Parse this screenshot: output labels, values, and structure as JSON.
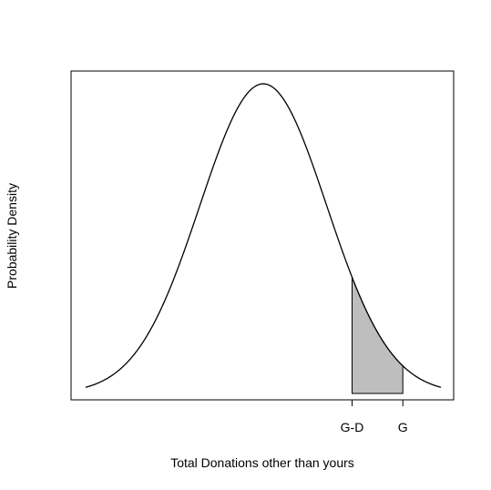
{
  "chart_data": {
    "type": "area",
    "title": "",
    "xlabel": "Total Donations other than yours",
    "ylabel": "Probability Density",
    "curve": "normal-density",
    "x_range": [
      -2.8,
      2.8
    ],
    "mean": 0,
    "sd": 1,
    "shaded_region": {
      "from": 1.4,
      "to": 2.2,
      "color": "#bebebe"
    },
    "x_ticks": [
      {
        "value": 1.4,
        "label": "G-D"
      },
      {
        "value": 2.2,
        "label": "G"
      }
    ],
    "y_ticks": [],
    "grid": false,
    "legend": "none",
    "colors": {
      "curve": "#000000",
      "fill": "#bebebe",
      "frame": "#000000"
    }
  }
}
